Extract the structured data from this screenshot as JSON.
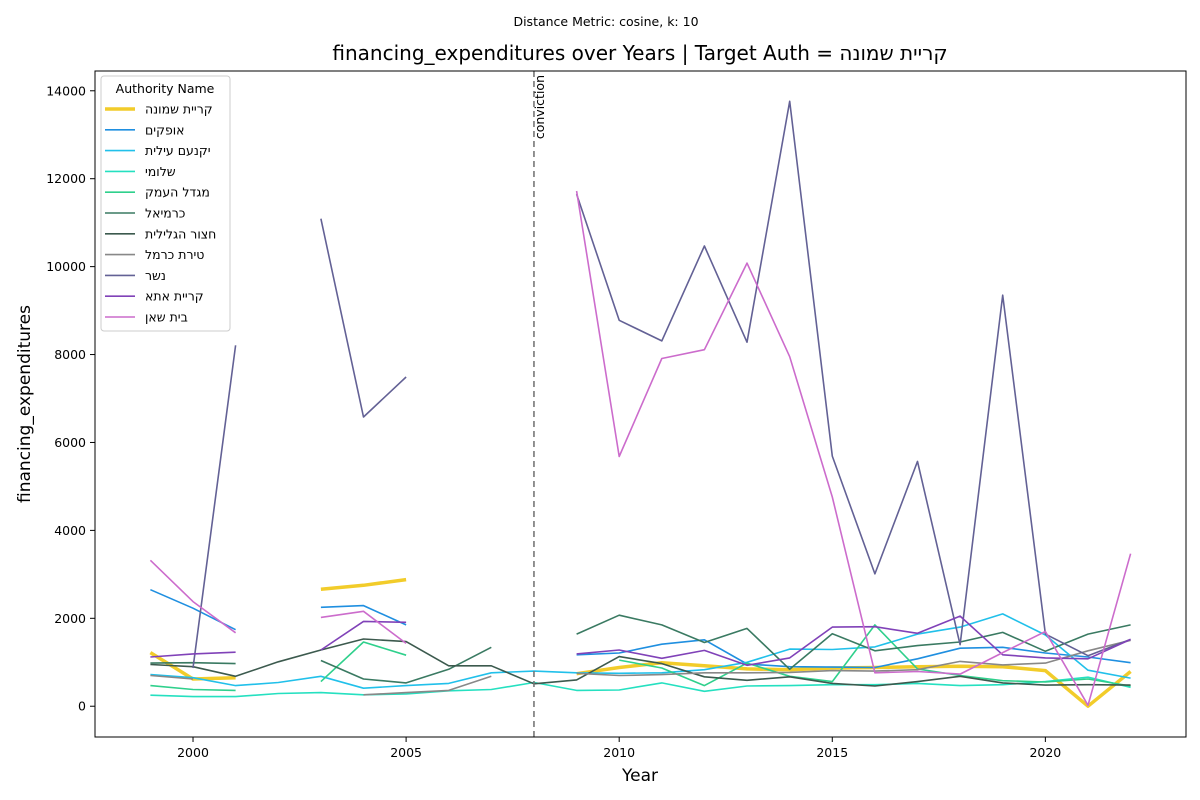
{
  "chart_data": {
    "type": "line",
    "suptitle": "Distance Metric: cosine, k: 10",
    "title": "financing_expenditures over Years | Target Auth = קריית שמונה",
    "xlabel": "Year",
    "ylabel": "financing_expenditures",
    "xlim": [
      1997.7,
      2023.3
    ],
    "ylim": [
      -700,
      14450
    ],
    "xticks": [
      2000,
      2005,
      2010,
      2015,
      2020
    ],
    "yticks": [
      0,
      2000,
      4000,
      6000,
      8000,
      10000,
      12000,
      14000
    ],
    "legend_title": "Authority Name",
    "legend_position": "upper-left",
    "annotation": {
      "x": 2008,
      "label": "conviction"
    },
    "x": [
      1999,
      2000,
      2001,
      2002,
      2003,
      2004,
      2005,
      2006,
      2007,
      2008,
      2009,
      2010,
      2011,
      2012,
      2013,
      2014,
      2015,
      2016,
      2017,
      2018,
      2019,
      2020,
      2021,
      2022
    ],
    "series": [
      {
        "name": "קריית שמונה",
        "color": "#f2cc2a",
        "width": 3.5,
        "values": [
          1220,
          620,
          650,
          null,
          2660,
          2750,
          2880,
          null,
          null,
          null,
          740,
          880,
          990,
          920,
          850,
          830,
          870,
          880,
          900,
          910,
          900,
          810,
          0,
          790
        ]
      },
      {
        "name": "אופקים",
        "color": "#1f8fe0",
        "width": 1.6,
        "values": [
          2650,
          2230,
          1740,
          null,
          2250,
          2290,
          1850,
          null,
          null,
          null,
          1170,
          1210,
          1410,
          1510,
          960,
          900,
          890,
          880,
          1080,
          1320,
          1340,
          1210,
          1120,
          990
        ]
      },
      {
        "name": "יקנעם עילית",
        "color": "#21c0ea",
        "width": 1.6,
        "values": [
          720,
          650,
          470,
          540,
          680,
          410,
          470,
          520,
          760,
          800,
          760,
          750,
          760,
          830,
          1000,
          1300,
          1290,
          1350,
          1640,
          1800,
          2100,
          1620,
          820,
          640
        ]
      },
      {
        "name": "שלומי",
        "color": "#25e0c0",
        "width": 1.6,
        "values": [
          250,
          220,
          220,
          290,
          310,
          260,
          280,
          350,
          380,
          540,
          360,
          370,
          530,
          340,
          460,
          470,
          490,
          490,
          520,
          470,
          490,
          560,
          660,
          430
        ]
      },
      {
        "name": "מגדל העמק",
        "color": "#2fd08c",
        "width": 1.6,
        "values": [
          470,
          380,
          360,
          null,
          560,
          1460,
          1160,
          null,
          null,
          null,
          null,
          1050,
          870,
          470,
          980,
          680,
          560,
          1850,
          850,
          700,
          580,
          550,
          620,
          460
        ]
      },
      {
        "name": "כרמיאל",
        "color": "#3a7a62",
        "width": 1.6,
        "values": [
          980,
          990,
          970,
          null,
          1040,
          620,
          530,
          840,
          1340,
          null,
          1640,
          2070,
          1850,
          1450,
          1770,
          840,
          1650,
          1260,
          1380,
          1460,
          1680,
          1250,
          1640,
          1850
        ]
      },
      {
        "name": "חצור הגלילית",
        "color": "#3c5a4e",
        "width": 1.6,
        "values": [
          950,
          900,
          680,
          1010,
          1280,
          1530,
          1470,
          920,
          920,
          510,
          600,
          1130,
          970,
          670,
          590,
          670,
          520,
          460,
          560,
          680,
          530,
          480,
          490,
          480
        ]
      },
      {
        "name": "טירת כרמל",
        "color": "#888888",
        "width": 1.6,
        "values": [
          700,
          620,
          null,
          null,
          null,
          260,
          310,
          360,
          680,
          null,
          750,
          700,
          720,
          760,
          760,
          770,
          810,
          800,
          830,
          1020,
          940,
          980,
          1260,
          1500
        ]
      },
      {
        "name": "נשר",
        "color": "#636195",
        "width": 1.6,
        "values": [
          null,
          870,
          8210,
          null,
          11090,
          6580,
          7490,
          null,
          null,
          null,
          11650,
          8780,
          8310,
          10470,
          8280,
          13760,
          5690,
          3010,
          5570,
          1400,
          9350,
          1640,
          1150,
          1520
        ]
      },
      {
        "name": "קריית אתא",
        "color": "#8042b8",
        "width": 1.6,
        "values": [
          1120,
          1190,
          1230,
          null,
          1280,
          1930,
          1910,
          null,
          null,
          null,
          1190,
          1280,
          1090,
          1270,
          930,
          1100,
          1800,
          1810,
          1660,
          2050,
          1170,
          1100,
          1080,
          1520
        ]
      },
      {
        "name": "בית שאן",
        "color": "#cc6ccc",
        "width": 1.6,
        "values": [
          3320,
          2380,
          1670,
          null,
          2020,
          2160,
          1430,
          null,
          null,
          null,
          11720,
          5680,
          7910,
          8110,
          10080,
          7950,
          4760,
          760,
          790,
          730,
          1220,
          1700,
          20,
          3470
        ]
      }
    ]
  }
}
